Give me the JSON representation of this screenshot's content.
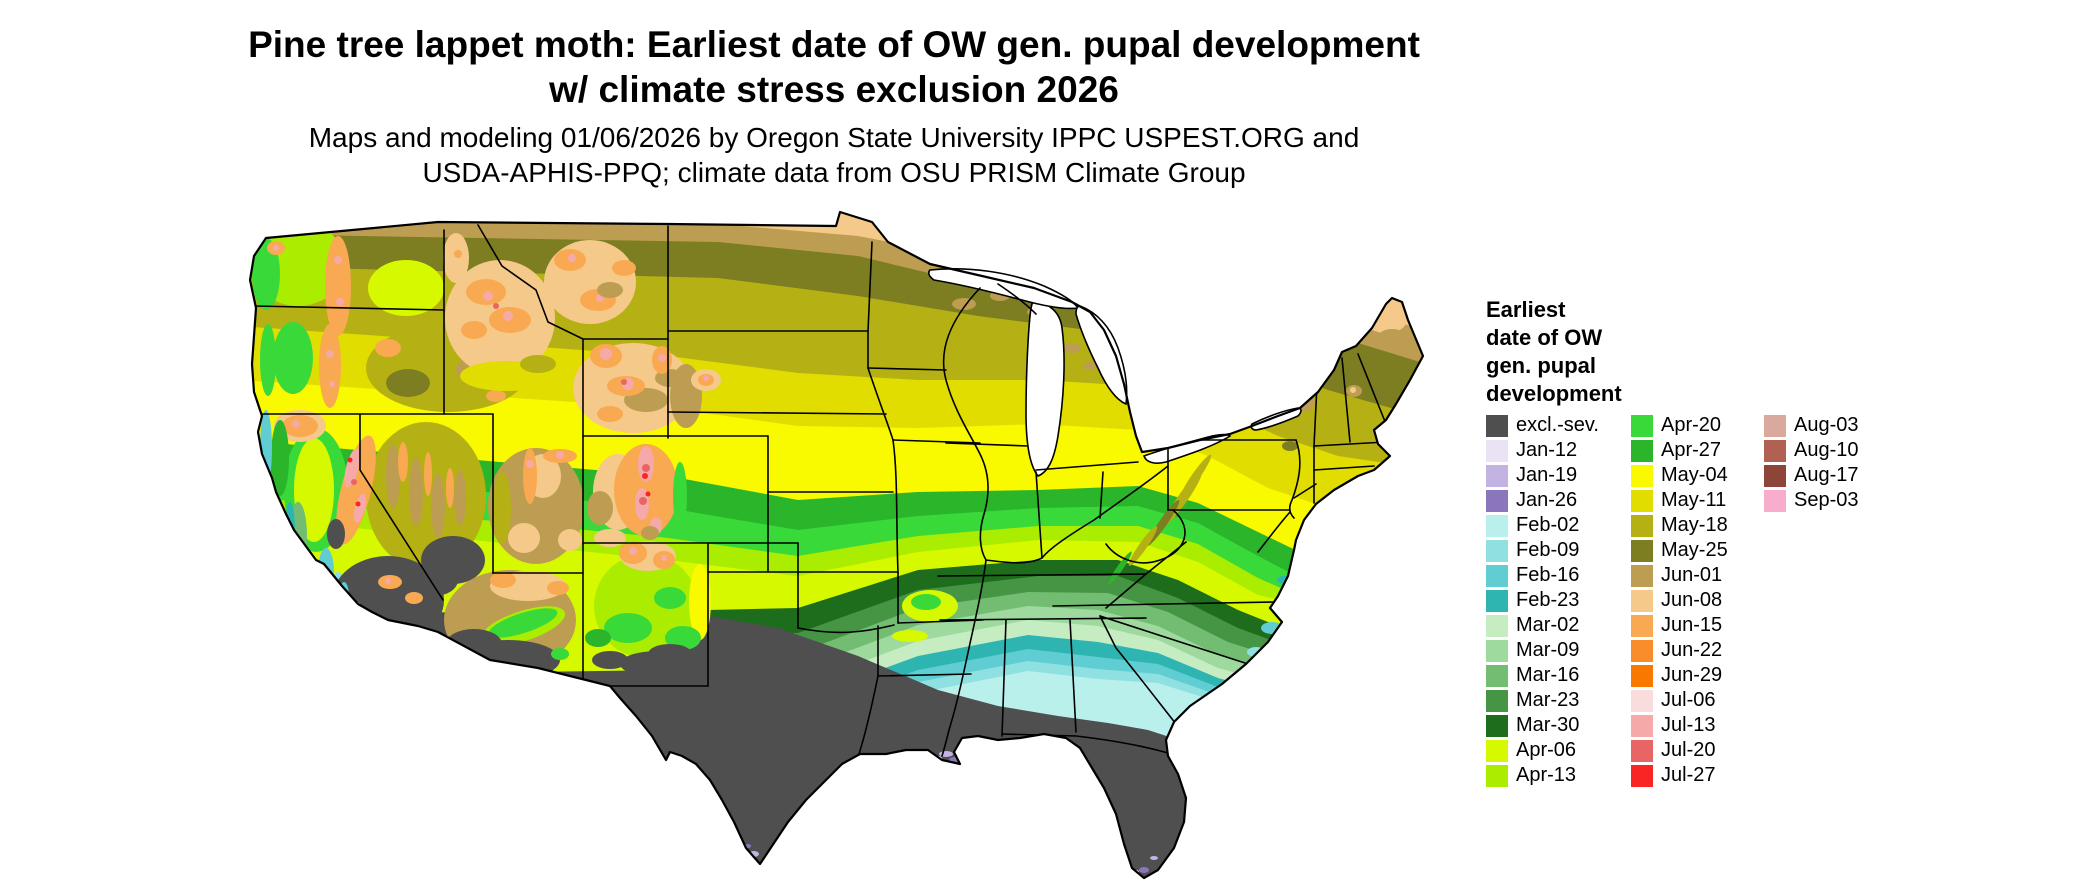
{
  "title": {
    "line1": "Pine tree lappet moth: Earliest date of OW gen. pupal development",
    "line2": "w/ climate stress exclusion 2026"
  },
  "subtitle": {
    "line1": "Maps and modeling 01/06/2026 by Oregon State University IPPC USPEST.ORG and",
    "line2": "USDA-APHIS-PPQ; climate data from OSU PRISM Climate Group"
  },
  "legend": {
    "title_lines": [
      "Earliest",
      "date of OW",
      "gen. pupal",
      "development"
    ],
    "columns": [
      [
        {
          "label": "excl.-sev.",
          "key": "excl-sev"
        },
        {
          "label": "Jan-12",
          "key": "Jan-12"
        },
        {
          "label": "Jan-19",
          "key": "Jan-19"
        },
        {
          "label": "Jan-26",
          "key": "Jan-26"
        },
        {
          "label": "Feb-02",
          "key": "Feb-02"
        },
        {
          "label": "Feb-09",
          "key": "Feb-09"
        },
        {
          "label": "Feb-16",
          "key": "Feb-16"
        },
        {
          "label": "Feb-23",
          "key": "Feb-23"
        },
        {
          "label": "Mar-02",
          "key": "Mar-02"
        },
        {
          "label": "Mar-09",
          "key": "Mar-09"
        },
        {
          "label": "Mar-16",
          "key": "Mar-16"
        },
        {
          "label": "Mar-23",
          "key": "Mar-23"
        },
        {
          "label": "Mar-30",
          "key": "Mar-30"
        },
        {
          "label": "Apr-06",
          "key": "Apr-06"
        },
        {
          "label": "Apr-13",
          "key": "Apr-13"
        }
      ],
      [
        {
          "label": "Apr-20",
          "key": "Apr-20"
        },
        {
          "label": "Apr-27",
          "key": "Apr-27"
        },
        {
          "label": "May-04",
          "key": "May-04"
        },
        {
          "label": "May-11",
          "key": "May-11"
        },
        {
          "label": "May-18",
          "key": "May-18"
        },
        {
          "label": "May-25",
          "key": "May-25"
        },
        {
          "label": "Jun-01",
          "key": "Jun-01"
        },
        {
          "label": "Jun-08",
          "key": "Jun-08"
        },
        {
          "label": "Jun-15",
          "key": "Jun-15"
        },
        {
          "label": "Jun-22",
          "key": "Jun-22"
        },
        {
          "label": "Jun-29",
          "key": "Jun-29"
        },
        {
          "label": "Jul-06",
          "key": "Jul-06"
        },
        {
          "label": "Jul-13",
          "key": "Jul-13"
        },
        {
          "label": "Jul-20",
          "key": "Jul-20"
        },
        {
          "label": "Jul-27",
          "key": "Jul-27"
        }
      ],
      [
        {
          "label": "Aug-03",
          "key": "Aug-03"
        },
        {
          "label": "Aug-10",
          "key": "Aug-10"
        },
        {
          "label": "Aug-17",
          "key": "Aug-17"
        },
        {
          "label": "Sep-03",
          "key": "Sep-03"
        }
      ]
    ]
  },
  "palette": {
    "excl-sev": "#4f4f4f",
    "Jan-12": "#e9e3f5",
    "Jan-19": "#c3b3e2",
    "Jan-26": "#8a76ba",
    "Feb-02": "#b9f0eb",
    "Feb-09": "#8fe1e1",
    "Feb-16": "#5fcdd1",
    "Feb-23": "#2fb5b1",
    "Mar-02": "#c6edc2",
    "Mar-09": "#9ed99e",
    "Mar-16": "#72bd72",
    "Mar-23": "#459545",
    "Mar-30": "#1d6d1d",
    "Apr-06": "#d6f900",
    "Apr-13": "#aaed00",
    "Apr-20": "#3ad93a",
    "Apr-27": "#2ab52a",
    "May-04": "#f9f900",
    "May-11": "#e1dd00",
    "May-18": "#b5b115",
    "May-25": "#7d7d21",
    "Jun-01": "#bd9d51",
    "Jun-08": "#f5c989",
    "Jun-15": "#f9a951",
    "Jun-22": "#f98d29",
    "Jun-29": "#f97900",
    "Jul-06": "#f9dddd",
    "Jul-13": "#f5a9a9",
    "Jul-20": "#e96565",
    "Jul-27": "#f92525",
    "Aug-03": "#d9a99d",
    "Aug-10": "#b16151",
    "Aug-17": "#8d4539",
    "Sep-03": "#f9adcd"
  }
}
